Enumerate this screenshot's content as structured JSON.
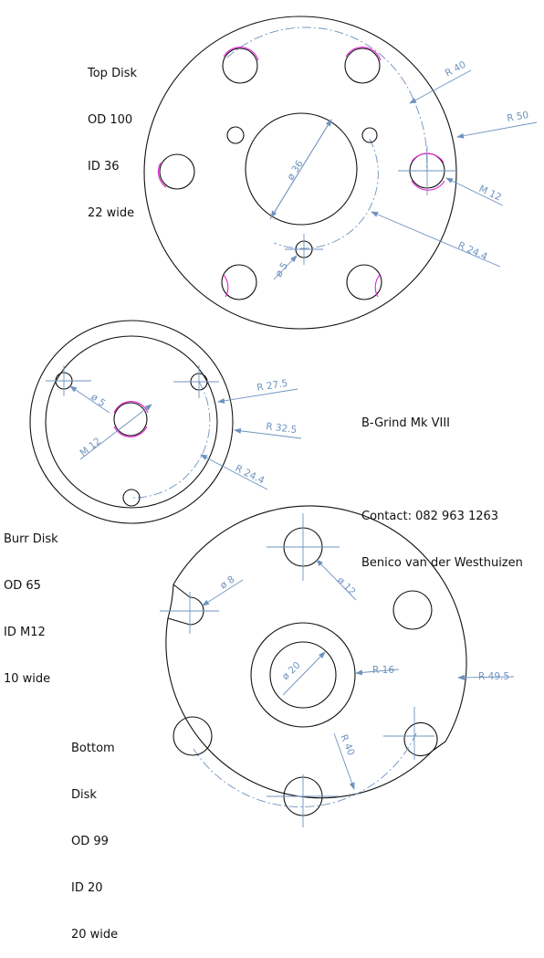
{
  "top_disk": {
    "label": [
      "Top Disk",
      "OD 100",
      "ID 36",
      "22 wide"
    ],
    "dims": {
      "r40": "R 40",
      "r50": "R 50",
      "m12": "M 12",
      "r24": "R 24.4",
      "d36": "ø 36",
      "d5": "ø 5"
    }
  },
  "burr_disk": {
    "label": [
      "Burr Disk",
      "OD 65",
      "ID M12",
      "10 wide"
    ],
    "dims": {
      "r27": "R 27.5",
      "r32": "R 32.5",
      "r24": "R 24.4",
      "m12": "M 12",
      "d5": "ø 5"
    }
  },
  "bottom_disk": {
    "label": [
      "Bottom",
      "Disk",
      "OD 99",
      "ID 20",
      "20 wide"
    ],
    "dims": {
      "d8": "ø 8",
      "d12": "ø 12",
      "r16": "R 16",
      "r49": "R 49.5",
      "d20": "ø 20",
      "r40": "R 40"
    }
  },
  "info": {
    "title": "B-Grind Mk VIII",
    "contact": "Contact: 082 963 1263",
    "name": "Benico van der Westhuizen"
  },
  "colors": {
    "outline": "#111111",
    "dimension": "#6f93bf",
    "thread": "#e020d0"
  }
}
